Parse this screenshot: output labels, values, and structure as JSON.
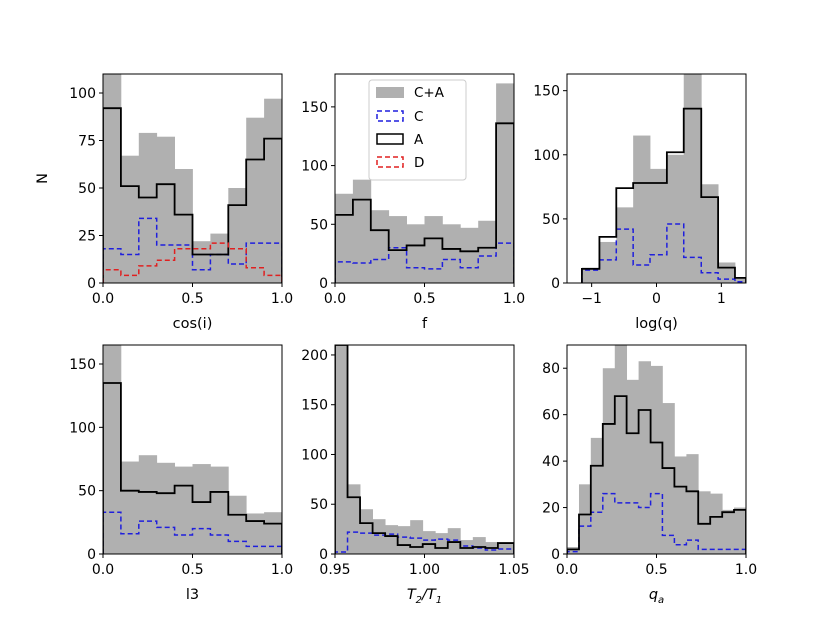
{
  "colors": {
    "ca": "#b0b0b0",
    "c": "#1f1fdd",
    "a": "#000000",
    "d": "#e02020"
  },
  "legend": {
    "items": [
      "C+A",
      "C",
      "A",
      "D"
    ]
  },
  "chart_data": [
    {
      "type": "histogram",
      "xlabel": "cos(i)",
      "ylabel": "N",
      "xlim": [
        0,
        1
      ],
      "ylim": [
        0,
        110
      ],
      "xticks": [
        0,
        0.5,
        1
      ],
      "xticklabels": [
        "0.0",
        "0.5",
        "1.0"
      ],
      "yticks": [
        0,
        25,
        50,
        75,
        100
      ],
      "yticklabels": [
        "0",
        "25",
        "50",
        "75",
        "100"
      ],
      "edges": [
        0,
        0.1,
        0.2,
        0.3,
        0.4,
        0.5,
        0.6,
        0.7,
        0.8,
        0.9,
        1.0
      ],
      "series": [
        {
          "name": "C+A",
          "values": [
            111,
            67,
            79,
            77,
            60,
            22,
            26,
            50,
            87,
            97
          ]
        },
        {
          "name": "C",
          "values": [
            18,
            15,
            34,
            20,
            20,
            7,
            15,
            10,
            21,
            21
          ]
        },
        {
          "name": "A",
          "values": [
            92,
            51,
            45,
            52,
            36,
            15,
            15,
            41,
            65,
            76
          ]
        },
        {
          "name": "D",
          "values": [
            7,
            4,
            9,
            12,
            18,
            18,
            21,
            18,
            8,
            4
          ]
        }
      ]
    },
    {
      "type": "histogram",
      "xlabel": "f",
      "ylabel": "",
      "xlim": [
        0,
        1
      ],
      "ylim": [
        0,
        178
      ],
      "xticks": [
        0,
        0.5,
        1
      ],
      "xticklabels": [
        "0.0",
        "0.5",
        "1.0"
      ],
      "yticks": [
        0,
        50,
        100,
        150
      ],
      "yticklabels": [
        "0",
        "50",
        "100",
        "150"
      ],
      "edges": [
        0,
        0.1,
        0.2,
        0.3,
        0.4,
        0.5,
        0.6,
        0.7,
        0.8,
        0.9,
        1.0
      ],
      "series": [
        {
          "name": "C+A",
          "values": [
            76,
            88,
            62,
            57,
            50,
            57,
            50,
            47,
            53,
            170
          ]
        },
        {
          "name": "C",
          "values": [
            18,
            17,
            20,
            30,
            13,
            12,
            20,
            13,
            23,
            34
          ]
        },
        {
          "name": "A",
          "values": [
            58,
            71,
            45,
            28,
            32,
            38,
            29,
            27,
            30,
            136
          ]
        }
      ]
    },
    {
      "type": "histogram",
      "xlabel": "log(q)",
      "ylabel": "",
      "xlim": [
        -1.38,
        1.38
      ],
      "ylim": [
        0,
        163
      ],
      "xticks": [
        -1,
        0,
        1
      ],
      "xticklabels": [
        "−1",
        "0",
        "1"
      ],
      "yticks": [
        0,
        50,
        100,
        150
      ],
      "yticklabels": [
        "0",
        "50",
        "100",
        "150"
      ],
      "edges": [
        -1.15,
        -0.88,
        -0.62,
        -0.36,
        -0.1,
        0.16,
        0.42,
        0.69,
        0.95,
        1.21,
        1.38
      ],
      "series": [
        {
          "name": "C+A",
          "values": [
            12,
            32,
            59,
            115,
            89,
            100,
            163,
            77,
            16,
            4
          ]
        },
        {
          "name": "C",
          "values": [
            10,
            18,
            42,
            14,
            22,
            46,
            20,
            8,
            3,
            1
          ]
        },
        {
          "name": "A",
          "values": [
            11,
            36,
            74,
            78,
            78,
            102,
            136,
            67,
            12,
            4
          ]
        }
      ]
    },
    {
      "type": "histogram",
      "xlabel": "l3",
      "ylabel": "",
      "xlim": [
        0,
        1
      ],
      "ylim": [
        0,
        165
      ],
      "xticks": [
        0,
        0.5,
        1
      ],
      "xticklabels": [
        "0.0",
        "0.5",
        "1.0"
      ],
      "yticks": [
        0,
        50,
        100,
        150
      ],
      "yticklabels": [
        "0",
        "50",
        "100",
        "150"
      ],
      "edges": [
        0,
        0.1,
        0.2,
        0.3,
        0.4,
        0.5,
        0.6,
        0.7,
        0.8,
        0.9,
        1.0
      ],
      "series": [
        {
          "name": "C+A",
          "values": [
            167,
            73,
            78,
            72,
            69,
            71,
            69,
            46,
            32,
            33
          ]
        },
        {
          "name": "C",
          "values": [
            33,
            16,
            26,
            21,
            15,
            20,
            15,
            10,
            6,
            6
          ]
        },
        {
          "name": "A",
          "values": [
            135,
            50,
            49,
            48,
            54,
            41,
            49,
            31,
            26,
            24
          ]
        }
      ]
    },
    {
      "type": "histogram",
      "xlabel": "T₂/T₁",
      "ylabel": "",
      "xlim": [
        0.95,
        1.05
      ],
      "ylim": [
        0,
        210
      ],
      "xticks": [
        0.95,
        1.0,
        1.05
      ],
      "xticklabels": [
        "0.95",
        "1.00",
        "1.05"
      ],
      "yticks": [
        0,
        50,
        100,
        150,
        200
      ],
      "yticklabels": [
        "0",
        "50",
        "100",
        "150",
        "200"
      ],
      "edges": [
        0.95,
        0.957,
        0.964,
        0.971,
        0.978,
        0.985,
        0.992,
        0.999,
        1.006,
        1.013,
        1.02,
        1.027,
        1.034,
        1.041,
        1.05
      ],
      "series": [
        {
          "name": "C+A",
          "values": [
            210,
            70,
            45,
            35,
            29,
            28,
            34,
            23,
            21,
            26,
            14,
            17,
            12,
            10
          ]
        },
        {
          "name": "C",
          "values": [
            2,
            22,
            21,
            19,
            20,
            17,
            16,
            14,
            15,
            14,
            8,
            6,
            4,
            5
          ]
        },
        {
          "name": "A",
          "values": [
            210,
            57,
            31,
            21,
            18,
            9,
            7,
            10,
            6,
            12,
            6,
            7,
            6,
            11
          ]
        }
      ]
    },
    {
      "type": "histogram",
      "xlabel": "q_a",
      "ylabel": "",
      "xlim": [
        0,
        1
      ],
      "ylim": [
        0,
        90
      ],
      "xticks": [
        0,
        0.5,
        1
      ],
      "xticklabels": [
        "0.0",
        "0.5",
        "1.0"
      ],
      "yticks": [
        0,
        20,
        40,
        60,
        80
      ],
      "yticklabels": [
        "0",
        "20",
        "40",
        "60",
        "80"
      ],
      "edges": [
        0,
        0.067,
        0.133,
        0.2,
        0.267,
        0.333,
        0.4,
        0.467,
        0.533,
        0.6,
        0.667,
        0.733,
        0.8,
        0.867,
        0.933,
        1.0
      ],
      "series": [
        {
          "name": "C+A",
          "values": [
            3,
            30,
            50,
            80,
            90,
            75,
            83,
            81,
            65,
            42,
            43,
            27,
            26,
            19,
            20
          ]
        },
        {
          "name": "C",
          "values": [
            1,
            12,
            18,
            26,
            22,
            22,
            20,
            26,
            8,
            4,
            6,
            2,
            2,
            2,
            2
          ]
        },
        {
          "name": "A",
          "values": [
            2,
            17,
            38,
            56,
            68,
            52,
            62,
            48,
            37,
            29,
            27,
            13,
            16,
            18,
            19
          ]
        }
      ]
    }
  ]
}
